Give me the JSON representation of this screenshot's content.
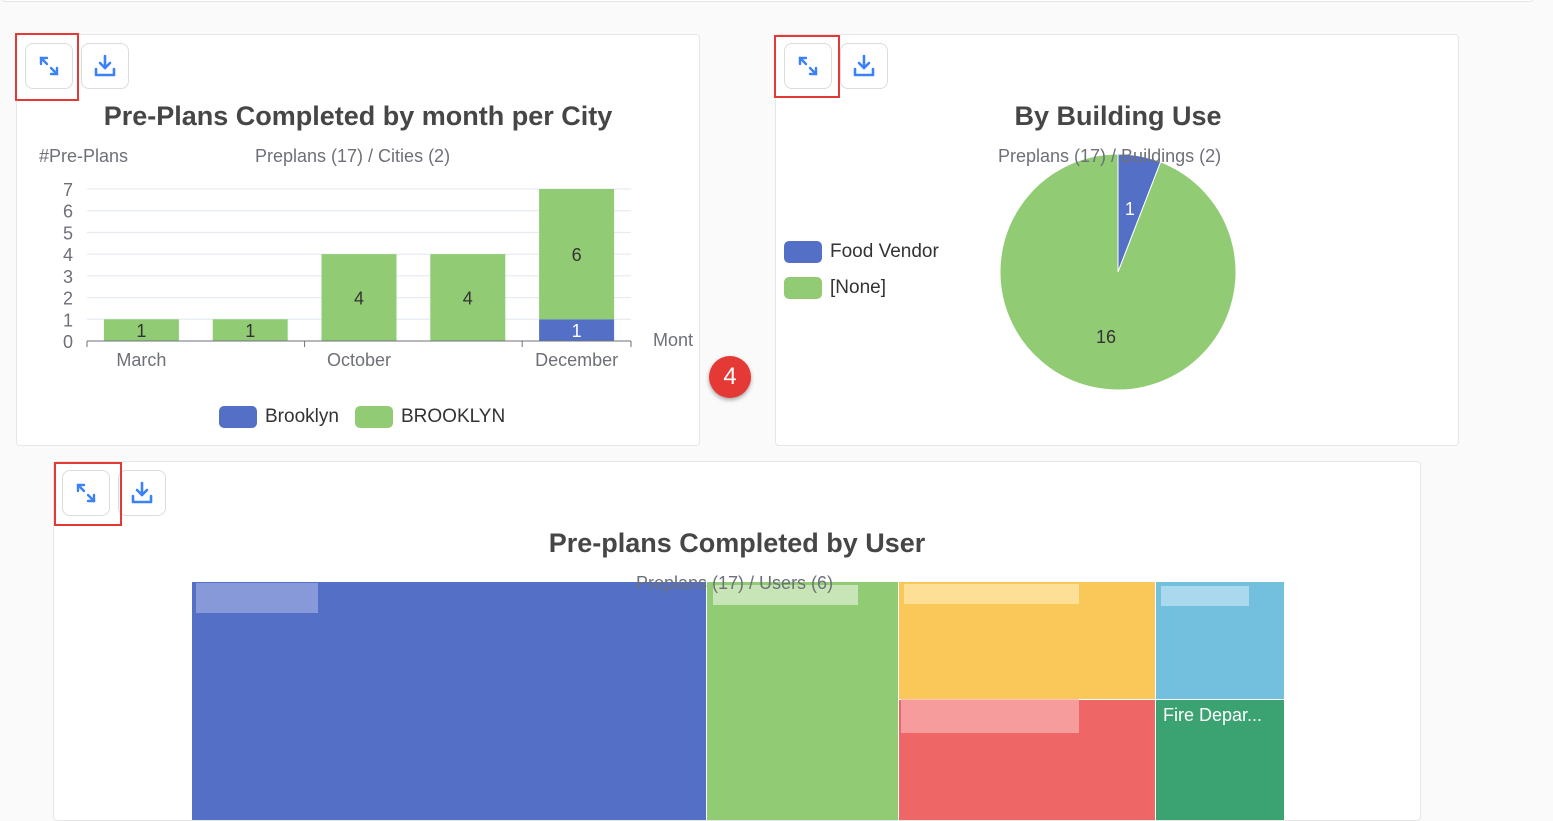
{
  "toolbar": {
    "expand_icon": "expand-icon",
    "download_icon": "download-icon"
  },
  "step_badge": "4",
  "colors": {
    "blue": "#5470c6",
    "green": "#91cc75",
    "yellow": "#fac858",
    "red": "#ee6666",
    "light_blue": "#73c0de",
    "teal": "#3ba272",
    "icon_blue": "#3b82f6",
    "highlight_red": "#e53935"
  },
  "city_chart": {
    "title": "Pre-Plans Completed by month per City",
    "subtitle": "Preplans (17) / Cities (2)",
    "legend": [
      "Brooklyn",
      "BROOKLYN"
    ]
  },
  "building_chart": {
    "title": "By Building Use",
    "subtitle": "Preplans (17) / Buildings (2)",
    "legend": [
      "Food Vendor",
      "[None]"
    ]
  },
  "user_chart": {
    "title": "Pre-plans Completed by User",
    "subtitle": "Preplans (17) / Users (6)",
    "visible_label": "Fire Depar..."
  },
  "chart_data": [
    {
      "type": "bar",
      "stacked": true,
      "ylabel": "#Pre-Plans",
      "xlabel": "Mont",
      "categories": [
        "March",
        "",
        "October",
        "",
        "December"
      ],
      "x_tick_labels": [
        "March",
        "October",
        "December"
      ],
      "y_ticks": [
        0,
        1,
        2,
        3,
        4,
        5,
        6,
        7
      ],
      "ylim": [
        0,
        7
      ],
      "grid": true,
      "legend_position": "bottom",
      "series": [
        {
          "name": "Brooklyn",
          "color": "#5470c6",
          "values": [
            0,
            0,
            0,
            0,
            1
          ]
        },
        {
          "name": "BROOKLYN",
          "color": "#91cc75",
          "values": [
            1,
            1,
            4,
            4,
            6
          ]
        }
      ]
    },
    {
      "type": "pie",
      "legend_position": "left",
      "slices": [
        {
          "name": "Food Vendor",
          "value": 1,
          "color": "#5470c6"
        },
        {
          "name": "[None]",
          "value": 16,
          "color": "#91cc75"
        }
      ]
    },
    {
      "type": "treemap",
      "total": 17,
      "nodes": [
        {
          "color": "#5470c6"
        },
        {
          "color": "#91cc75"
        },
        {
          "color": "#fac858"
        },
        {
          "color": "#ee6666"
        },
        {
          "color": "#73c0de"
        },
        {
          "name": "Fire Depar...",
          "color": "#3ba272"
        }
      ]
    }
  ]
}
